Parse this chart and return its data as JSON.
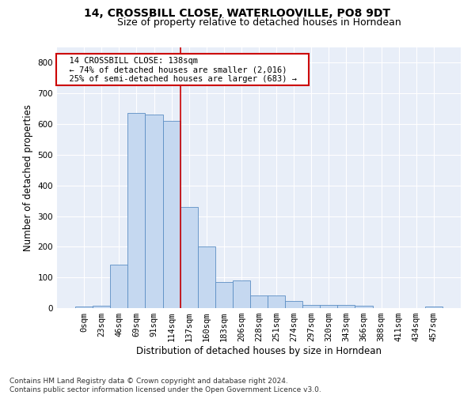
{
  "title1": "14, CROSSBILL CLOSE, WATERLOOVILLE, PO8 9DT",
  "title2": "Size of property relative to detached houses in Horndean",
  "xlabel": "Distribution of detached houses by size in Horndean",
  "ylabel": "Number of detached properties",
  "bar_values": [
    5,
    8,
    142,
    636,
    630,
    610,
    330,
    200,
    84,
    90,
    40,
    40,
    24,
    10,
    10,
    10,
    8,
    0,
    0,
    0,
    5
  ],
  "bin_labels": [
    "0sqm",
    "23sqm",
    "46sqm",
    "69sqm",
    "91sqm",
    "114sqm",
    "137sqm",
    "160sqm",
    "183sqm",
    "206sqm",
    "228sqm",
    "251sqm",
    "274sqm",
    "297sqm",
    "320sqm",
    "343sqm",
    "366sqm",
    "388sqm",
    "411sqm",
    "434sqm",
    "457sqm"
  ],
  "bar_color": "#c5d8f0",
  "bar_edge_color": "#5b8ec4",
  "bg_color": "#e8eef8",
  "grid_color": "#ffffff",
  "vline_x": 5.5,
  "vline_color": "#cc0000",
  "annotation_text": "  14 CROSSBILL CLOSE: 138sqm  \n  ← 74% of detached houses are smaller (2,016)  \n  25% of semi-detached houses are larger (683) →  ",
  "annotation_box_color": "#ffffff",
  "annotation_box_edge": "#cc0000",
  "ylim": [
    0,
    850
  ],
  "yticks": [
    0,
    100,
    200,
    300,
    400,
    500,
    600,
    700,
    800
  ],
  "footer": "Contains HM Land Registry data © Crown copyright and database right 2024.\nContains public sector information licensed under the Open Government Licence v3.0.",
  "title1_fontsize": 10,
  "title2_fontsize": 9,
  "xlabel_fontsize": 8.5,
  "ylabel_fontsize": 8.5,
  "tick_fontsize": 7.5,
  "annotation_fontsize": 7.5,
  "footer_fontsize": 6.5
}
